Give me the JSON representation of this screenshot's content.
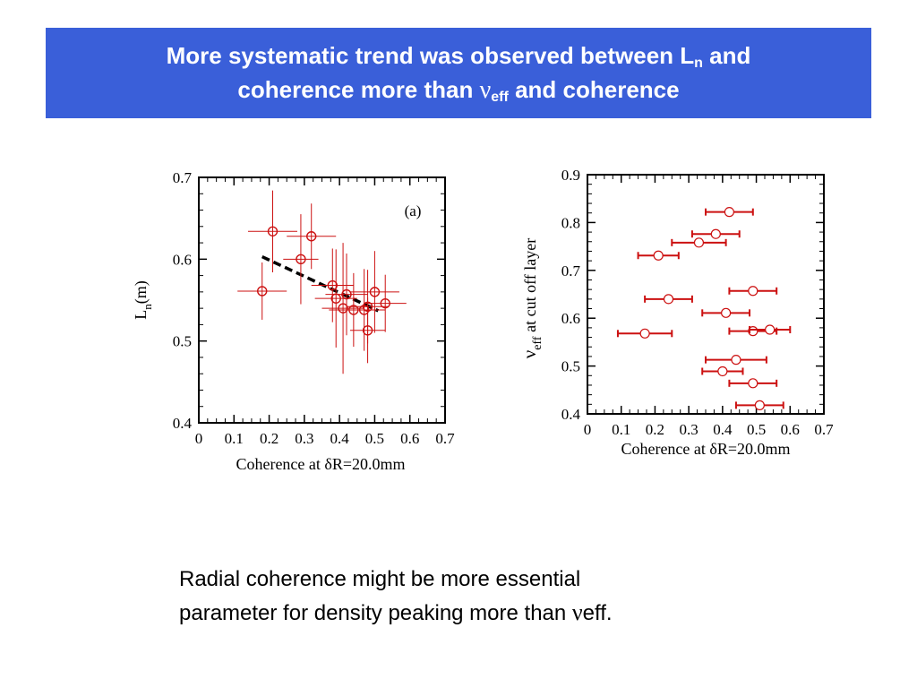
{
  "slide": {
    "title_line1_pre": "More systematic trend was observed between L",
    "title_line1_sub": "n",
    "title_line1_post": " and",
    "title_line2_pre": "coherence more than ",
    "title_line2_nu": "ν",
    "title_line2_sub": "eff",
    "title_line2_post": " and coherence",
    "body_line1": "Radial coherence might be more essential",
    "body_line2_pre": "parameter for density peaking more than ",
    "body_line2_nu": "ν",
    "body_line2_post": "eff."
  },
  "colors": {
    "banner": "#3a5fd9",
    "marker": "#cc1111",
    "trend_line": "#000000"
  },
  "chart_data": [
    {
      "type": "scatter",
      "panel_label": "(a)",
      "xlabel": "Coherence at δR=20.0mm",
      "ylabel": "L",
      "ylabel_sub": "n",
      "ylabel_post": "(m)",
      "xlim": [
        0,
        0.7
      ],
      "ylim": [
        0.4,
        0.7
      ],
      "x_ticks": [
        "0",
        "0.1",
        "0.2",
        "0.3",
        "0.4",
        "0.5",
        "0.6",
        "0.7"
      ],
      "y_ticks": [
        "0.4",
        "0.5",
        "0.6",
        "0.7"
      ],
      "marker": "circle-open",
      "points": [
        {
          "x": 0.18,
          "y": 0.561,
          "xerr": 0.07,
          "yerr": 0.035
        },
        {
          "x": 0.21,
          "y": 0.634,
          "xerr": 0.07,
          "yerr": 0.05
        },
        {
          "x": 0.29,
          "y": 0.6,
          "xerr": 0.05,
          "yerr": 0.055
        },
        {
          "x": 0.32,
          "y": 0.628,
          "xerr": 0.07,
          "yerr": 0.04
        },
        {
          "x": 0.38,
          "y": 0.568,
          "xerr": 0.06,
          "yerr": 0.045
        },
        {
          "x": 0.39,
          "y": 0.552,
          "xerr": 0.06,
          "yerr": 0.06
        },
        {
          "x": 0.41,
          "y": 0.54,
          "xerr": 0.06,
          "yerr": 0.08
        },
        {
          "x": 0.42,
          "y": 0.557,
          "xerr": 0.06,
          "yerr": 0.05
        },
        {
          "x": 0.44,
          "y": 0.538,
          "xerr": 0.07,
          "yerr": 0.045
        },
        {
          "x": 0.47,
          "y": 0.538,
          "xerr": 0.06,
          "yerr": 0.05
        },
        {
          "x": 0.48,
          "y": 0.513,
          "xerr": 0.05,
          "yerr": 0.04
        },
        {
          "x": 0.48,
          "y": 0.542,
          "xerr": 0.06,
          "yerr": 0.045
        },
        {
          "x": 0.5,
          "y": 0.56,
          "xerr": 0.07,
          "yerr": 0.05
        },
        {
          "x": 0.53,
          "y": 0.546,
          "xerr": 0.06,
          "yerr": 0.035
        }
      ],
      "trend_line": {
        "style": "dashed",
        "x": [
          0.18,
          0.51
        ],
        "y": [
          0.603,
          0.537
        ]
      }
    },
    {
      "type": "scatter",
      "xlabel": "Coherence at δR=20.0mm",
      "ylabel": "ν",
      "ylabel_sub": "eff",
      "ylabel_post": " at cut off layer",
      "xlim": [
        0,
        0.7
      ],
      "ylim": [
        0.4,
        0.9
      ],
      "x_ticks": [
        "0",
        "0.1",
        "0.2",
        "0.3",
        "0.4",
        "0.5",
        "0.6",
        "0.7"
      ],
      "y_ticks": [
        "0.4",
        "0.5",
        "0.6",
        "0.7",
        "0.8",
        "0.9"
      ],
      "marker": "circle-open-white",
      "points": [
        {
          "x": 0.42,
          "y": 0.822,
          "xerr": 0.07
        },
        {
          "x": 0.38,
          "y": 0.776,
          "xerr": 0.07
        },
        {
          "x": 0.33,
          "y": 0.758,
          "xerr": 0.08
        },
        {
          "x": 0.21,
          "y": 0.731,
          "xerr": 0.06
        },
        {
          "x": 0.49,
          "y": 0.657,
          "xerr": 0.07
        },
        {
          "x": 0.24,
          "y": 0.64,
          "xerr": 0.07
        },
        {
          "x": 0.41,
          "y": 0.611,
          "xerr": 0.07
        },
        {
          "x": 0.49,
          "y": 0.573,
          "xerr": 0.07
        },
        {
          "x": 0.54,
          "y": 0.576,
          "xerr": 0.06
        },
        {
          "x": 0.17,
          "y": 0.568,
          "xerr": 0.08
        },
        {
          "x": 0.44,
          "y": 0.513,
          "xerr": 0.09
        },
        {
          "x": 0.4,
          "y": 0.489,
          "xerr": 0.06
        },
        {
          "x": 0.49,
          "y": 0.464,
          "xerr": 0.07
        },
        {
          "x": 0.51,
          "y": 0.418,
          "xerr": 0.07
        }
      ]
    }
  ]
}
